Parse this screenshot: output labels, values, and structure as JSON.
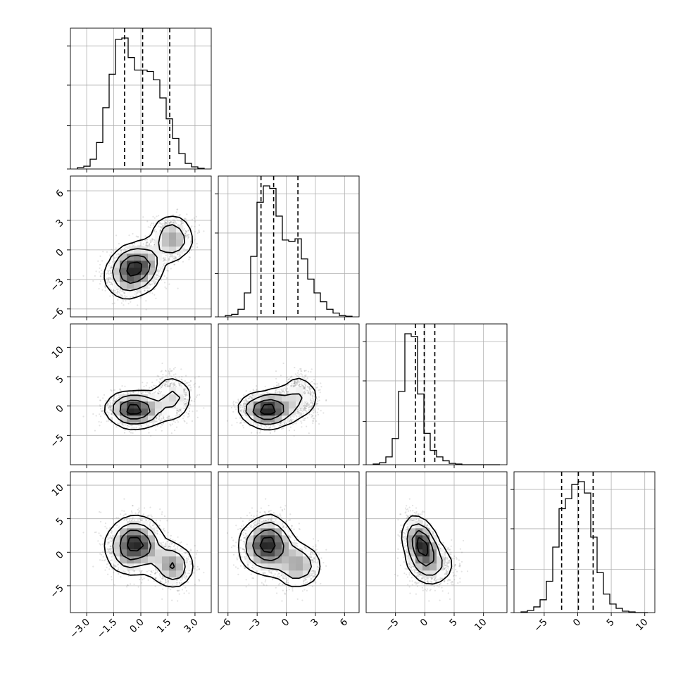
{
  "chart_data": {
    "type": "corner",
    "parameters": [
      {
        "range": [
          -3.9,
          3.9
        ],
        "ticks": [
          -3.0,
          -1.5,
          0.0,
          1.5,
          3.0
        ],
        "tick_labels": [
          "−3.0",
          "−1.5",
          "0.0",
          "1.5",
          "3.0"
        ],
        "quantiles": [
          -0.9,
          0.1,
          1.6
        ]
      },
      {
        "range": [
          -7.0,
          7.5
        ],
        "ticks": [
          -6,
          -3,
          0,
          3,
          6
        ],
        "tick_labels": [
          "−6",
          "−3",
          "0",
          "3",
          "6"
        ],
        "quantiles": [
          -2.6,
          -1.3,
          1.2
        ]
      },
      {
        "range": [
          -10.0,
          14.0
        ],
        "ticks": [
          -5,
          0,
          5,
          10
        ],
        "tick_labels": [
          "−5",
          "0",
          "5",
          "10"
        ],
        "quantiles": [
          -1.6,
          -0.1,
          1.7
        ]
      },
      {
        "range": [
          -9.5,
          11.5
        ],
        "ticks": [
          -5,
          0,
          5,
          10
        ],
        "tick_labels": [
          "−5",
          "0",
          "5",
          "10"
        ],
        "quantiles": [
          -2.4,
          0.1,
          2.3
        ]
      }
    ],
    "panel_y_ranges": {
      "1": [
        -6.8,
        7.5
      ],
      "2": [
        -10.0,
        14.0
      ],
      "3": [
        -9.0,
        12.0
      ]
    },
    "histograms": [
      {
        "param": 0,
        "values": [
          2,
          4,
          14,
          38,
          88,
          136,
          186,
          188,
          160,
          142,
          142,
          140,
          128,
          102,
          72,
          44,
          22,
          8,
          3,
          1
        ]
      },
      {
        "param": 1,
        "values": [
          2,
          4,
          12,
          38,
          96,
          182,
          208,
          204,
          160,
          122,
          120,
          124,
          92,
          60,
          38,
          24,
          12,
          6,
          2,
          1
        ]
      },
      {
        "param": 2,
        "values": [
          1,
          3,
          12,
          40,
          112,
          200,
          196,
          108,
          48,
          22,
          12,
          6,
          2,
          1,
          0,
          0,
          0,
          0,
          0,
          0
        ]
      },
      {
        "param": 3,
        "values": [
          1,
          3,
          8,
          18,
          44,
          92,
          146,
          160,
          180,
          184,
          168,
          106,
          56,
          26,
          12,
          6,
          2,
          1,
          0,
          0
        ]
      }
    ],
    "grid": true,
    "contour_levels": [
      "0.5",
      "1.0",
      "1.5",
      "2.0"
    ],
    "color": "#000000",
    "scatter_color": "#808080"
  }
}
